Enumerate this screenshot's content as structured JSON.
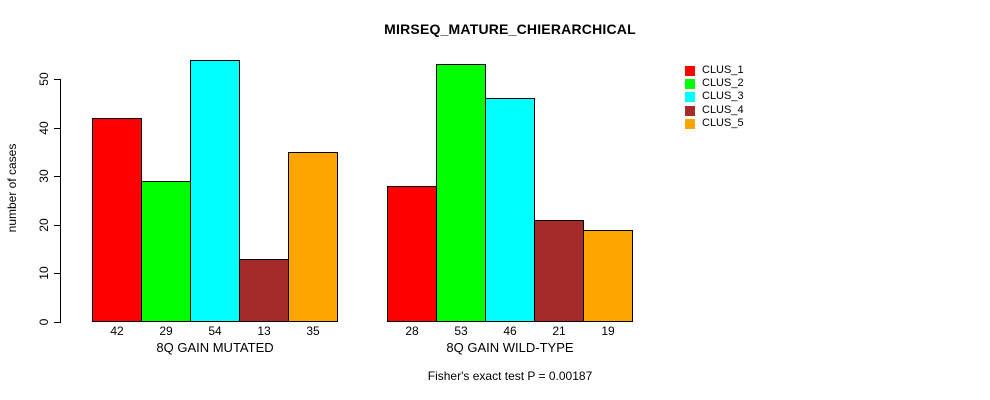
{
  "chart_data": {
    "type": "bar",
    "title": "MIRSEQ_MATURE_CHIERARCHICAL",
    "ylabel": "number of cases",
    "xlabel": "",
    "ylim": [
      0,
      55
    ],
    "yticks": [
      0,
      10,
      20,
      30,
      40,
      50
    ],
    "grid": false,
    "legend_position": "top-right",
    "bar_value_labels": true,
    "categories": [
      "8Q GAIN MUTATED",
      "8Q GAIN WILD-TYPE"
    ],
    "series": [
      {
        "name": "CLUS_1",
        "color": "#FF0000",
        "values": [
          42,
          28
        ]
      },
      {
        "name": "CLUS_2",
        "color": "#00FF00",
        "values": [
          29,
          53
        ]
      },
      {
        "name": "CLUS_3",
        "color": "#00FFFF",
        "values": [
          54,
          46
        ]
      },
      {
        "name": "CLUS_4",
        "color": "#A52A2A",
        "values": [
          13,
          21
        ]
      },
      {
        "name": "CLUS_5",
        "color": "#FFA500",
        "values": [
          35,
          19
        ]
      }
    ],
    "annotation": "Fisher's exact test P = 0.00187"
  }
}
